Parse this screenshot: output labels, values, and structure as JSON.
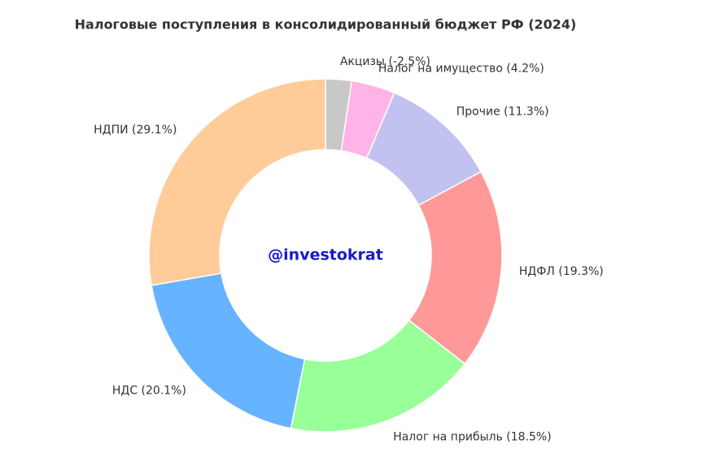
{
  "chart_data": {
    "type": "donut",
    "title": "Налоговые поступления в консолидированный бюджет РФ (2024)",
    "center_label": "@investokrat",
    "categories": [
      "Акцизы (-2.5%)",
      "Налог на имущество (4.2%)",
      "Прочие (11.3%)",
      "НДФЛ (19.3%)",
      "Налог на прибыль (18.5%)",
      "НДС (20.1%)",
      "НДПИ (29.1%)"
    ],
    "values": [
      -2.5,
      4.2,
      11.3,
      19.3,
      18.5,
      20.1,
      29.1
    ],
    "colors": [
      "#c8c8c8",
      "#ffb3e6",
      "#c2c2f0",
      "#ff9999",
      "#99ff99",
      "#66b3ff",
      "#ffcc99"
    ]
  }
}
